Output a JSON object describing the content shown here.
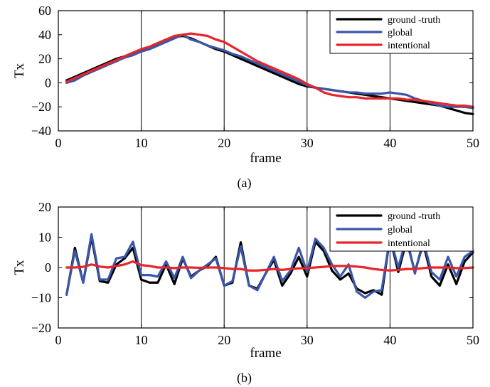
{
  "colors": {
    "ground_truth": "#000000",
    "global": "#3a56a8",
    "intentional": "#e8252b"
  },
  "chart_data": [
    {
      "type": "line",
      "caption": "(a)",
      "xlabel": "frame",
      "ylabel": "Tx",
      "xlim": [
        0,
        50
      ],
      "ylim": [
        -40,
        60
      ],
      "xticks": [
        0,
        10,
        20,
        30,
        40,
        50
      ],
      "yticks": [
        -40,
        -20,
        0,
        20,
        40,
        60
      ],
      "grid": "vertical",
      "legend_position": "top-right",
      "x": [
        1,
        2,
        3,
        4,
        5,
        6,
        7,
        8,
        9,
        10,
        11,
        12,
        13,
        14,
        15,
        16,
        17,
        18,
        19,
        20,
        21,
        22,
        23,
        24,
        25,
        26,
        27,
        28,
        29,
        30,
        31,
        32,
        33,
        34,
        35,
        36,
        37,
        38,
        39,
        40,
        41,
        42,
        43,
        44,
        45,
        46,
        47,
        48,
        49,
        50
      ],
      "series": [
        {
          "name": "ground -truth",
          "color_key": "ground_truth",
          "values": [
            2,
            5,
            8,
            11,
            14,
            17,
            20,
            22,
            25,
            27,
            30,
            33,
            36,
            38,
            39,
            37,
            34,
            31,
            28,
            26,
            23,
            20,
            17,
            14,
            11,
            8,
            5,
            2,
            -1,
            -3,
            -4,
            -5,
            -6,
            -7,
            -8,
            -9,
            -10,
            -11,
            -12,
            -13,
            -14,
            -15,
            -16,
            -17,
            -18,
            -19,
            -21,
            -23,
            -25,
            -26
          ]
        },
        {
          "name": "global",
          "color_key": "global",
          "values": [
            0,
            2,
            6,
            9,
            12,
            15,
            18,
            21,
            23,
            26,
            28,
            31,
            34,
            37,
            40,
            36,
            34,
            31,
            29,
            27,
            24,
            22,
            19,
            16,
            13,
            10,
            7,
            4,
            1,
            -2,
            -4,
            -5,
            -6,
            -7,
            -8,
            -8,
            -9,
            -9,
            -9,
            -8,
            -9,
            -10,
            -13,
            -15,
            -17,
            -19,
            -20,
            -20,
            -20,
            -21
          ]
        },
        {
          "name": "intentional",
          "color_key": "intentional",
          "values": [
            1,
            4,
            7,
            10,
            13,
            16,
            19,
            22,
            25,
            28,
            30,
            33,
            36,
            39,
            40,
            41,
            40,
            39,
            36,
            34,
            30,
            26,
            22,
            18,
            15,
            12,
            9,
            6,
            3,
            -1,
            -4,
            -8,
            -10,
            -11,
            -12,
            -12,
            -13,
            -13,
            -13,
            -13,
            -13,
            -14,
            -14,
            -15,
            -16,
            -17,
            -18,
            -19,
            -19,
            -20
          ]
        }
      ]
    },
    {
      "type": "line",
      "caption": "(b)",
      "xlabel": "frame",
      "ylabel": "Tx",
      "xlim": [
        0,
        50
      ],
      "ylim": [
        -20,
        20
      ],
      "xticks": [
        0,
        10,
        20,
        30,
        40,
        50
      ],
      "yticks": [
        -20,
        -10,
        0,
        10,
        20
      ],
      "grid": "vertical",
      "legend_position": "top-right",
      "x": [
        1,
        2,
        3,
        4,
        5,
        6,
        7,
        8,
        9,
        10,
        11,
        12,
        13,
        14,
        15,
        16,
        17,
        18,
        19,
        20,
        21,
        22,
        23,
        24,
        25,
        26,
        27,
        28,
        29,
        30,
        31,
        32,
        33,
        34,
        35,
        36,
        37,
        38,
        39,
        40,
        41,
        42,
        43,
        44,
        45,
        46,
        47,
        48,
        49,
        50
      ],
      "series": [
        {
          "name": "ground -truth",
          "color_key": "ground_truth",
          "values": [
            -9,
            6.5,
            -5,
            10,
            -4.5,
            -5,
            1,
            3,
            6.5,
            -4,
            -5,
            -5,
            1,
            -5.5,
            3,
            -3,
            -1,
            0.5,
            3.5,
            -6,
            -5,
            8.3,
            -6,
            -7,
            -2,
            2.5,
            -6,
            -2,
            3.5,
            -3,
            8.5,
            5.5,
            -1,
            -4,
            -2,
            -7,
            -8.5,
            -7.5,
            -9,
            10,
            -1.5,
            9,
            -1.5,
            8,
            -3,
            -6,
            1,
            -5.5,
            2,
            5
          ]
        },
        {
          "name": "global",
          "color_key": "global",
          "values": [
            -9,
            5.5,
            -5,
            11,
            -4,
            -4,
            3,
            3.5,
            8.5,
            -2.5,
            -2.5,
            -3,
            2,
            -3.5,
            3.5,
            -3.5,
            -1,
            1,
            3,
            -6,
            -4.5,
            7,
            -6,
            -7.5,
            -2,
            3.5,
            -4.5,
            -1,
            6.5,
            -1.5,
            9.5,
            6.5,
            1,
            -3,
            1,
            -8,
            -10,
            -8,
            -7.5,
            10,
            0,
            10,
            -2,
            9,
            -1.5,
            -4,
            3.5,
            -3,
            3.5,
            5.5
          ]
        },
        {
          "name": "intentional",
          "color_key": "intentional",
          "values": [
            0,
            0,
            0.2,
            1,
            0.3,
            0,
            0.5,
            1,
            2,
            0.8,
            0.5,
            0,
            0,
            -0.2,
            0,
            0,
            -0.1,
            0,
            0,
            -0.2,
            -0.5,
            -0.5,
            -1,
            -1,
            -0.8,
            -0.5,
            -0.8,
            -0.5,
            -0.3,
            -0.2,
            0,
            0.2,
            0.5,
            0.5,
            0.5,
            0.3,
            0,
            -0.5,
            -0.8,
            -1,
            -0.8,
            -0.5,
            -0.5,
            -0.2,
            0,
            0,
            0,
            -0.2,
            -0.2,
            0
          ]
        }
      ]
    }
  ]
}
